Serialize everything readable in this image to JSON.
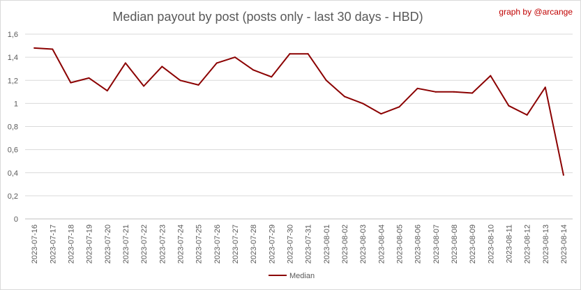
{
  "chart_data": {
    "type": "line",
    "title": "Median payout by post (posts only - last 30 days - HBD)",
    "credit": "graph by @arcange",
    "xlabel": "",
    "ylabel": "",
    "ylim": [
      0,
      1.6
    ],
    "yticks": [
      0,
      0.2,
      0.4,
      0.6,
      0.8,
      1,
      1.2,
      1.4,
      1.6
    ],
    "ytick_labels": [
      "0",
      "0,2",
      "0,4",
      "0,6",
      "0,8",
      "1",
      "1,2",
      "1,4",
      "1,6"
    ],
    "grid": "horizontal",
    "legend_position": "bottom",
    "color": "#8b0000",
    "categories": [
      "2023-07-16",
      "2023-07-17",
      "2023-07-18",
      "2023-07-19",
      "2023-07-20",
      "2023-07-21",
      "2023-07-22",
      "2023-07-23",
      "2023-07-24",
      "2023-07-25",
      "2023-07-26",
      "2023-07-27",
      "2023-07-28",
      "2023-07-29",
      "2023-07-30",
      "2023-07-31",
      "2023-08-01",
      "2023-08-02",
      "2023-08-03",
      "2023-08-04",
      "2023-08-05",
      "2023-08-06",
      "2023-08-07",
      "2023-08-08",
      "2023-08-09",
      "2023-08-10",
      "2023-08-11",
      "2023-08-12",
      "2023-08-13",
      "2023-08-14"
    ],
    "series": [
      {
        "name": "Median",
        "values": [
          1.48,
          1.47,
          1.18,
          1.22,
          1.11,
          1.35,
          1.15,
          1.32,
          1.2,
          1.16,
          1.35,
          1.4,
          1.29,
          1.23,
          1.43,
          1.43,
          1.2,
          1.06,
          1.0,
          0.91,
          0.97,
          1.13,
          1.1,
          1.1,
          1.09,
          1.24,
          0.98,
          0.9,
          1.14,
          0.38
        ]
      }
    ]
  }
}
